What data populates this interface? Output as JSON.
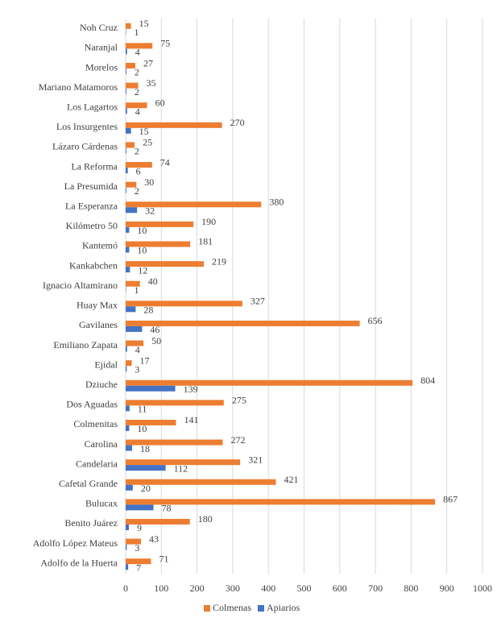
{
  "chart_data": {
    "type": "bar",
    "orientation": "horizontal",
    "categories": [
      "Noh Cruz",
      "Naranjal",
      "Morelos",
      "Mariano Matamoros",
      "Los Lagartos",
      "Los Insurgentes",
      "Lázaro Cárdenas",
      "La Reforma",
      "La Presumida",
      "La Esperanza",
      "Kilómetro 50",
      "Kantemó",
      "Kankabchen",
      "Ignacio Altamirano",
      "Huay Max",
      "Gavilanes",
      "Emiliano Zapata",
      "Ejidal",
      "Dziuche",
      "Dos Aguadas",
      "Colmenitas",
      "Carolina",
      "Candelaria",
      "Cafetal Grande",
      "Bulucax",
      "Benito Juárez",
      "Adolfo López Mateus",
      "Adolfo de la Huerta"
    ],
    "series": [
      {
        "name": "Colmenas",
        "color": "#ed7d31",
        "values": [
          15,
          75,
          27,
          35,
          60,
          270,
          25,
          74,
          30,
          380,
          190,
          181,
          219,
          40,
          327,
          656,
          50,
          17,
          804,
          275,
          141,
          272,
          321,
          421,
          867,
          180,
          43,
          71
        ]
      },
      {
        "name": "Apiarios",
        "color": "#4472c4",
        "values": [
          1,
          4,
          2,
          2,
          4,
          15,
          2,
          6,
          2,
          32,
          10,
          10,
          12,
          1,
          28,
          46,
          4,
          3,
          139,
          11,
          10,
          18,
          112,
          20,
          78,
          9,
          3,
          7
        ]
      }
    ],
    "xlim": [
      0,
      1000
    ],
    "xticks": [
      0,
      100,
      200,
      300,
      400,
      500,
      600,
      700,
      800,
      900,
      1000
    ],
    "grid": true,
    "legend": "bottom"
  }
}
